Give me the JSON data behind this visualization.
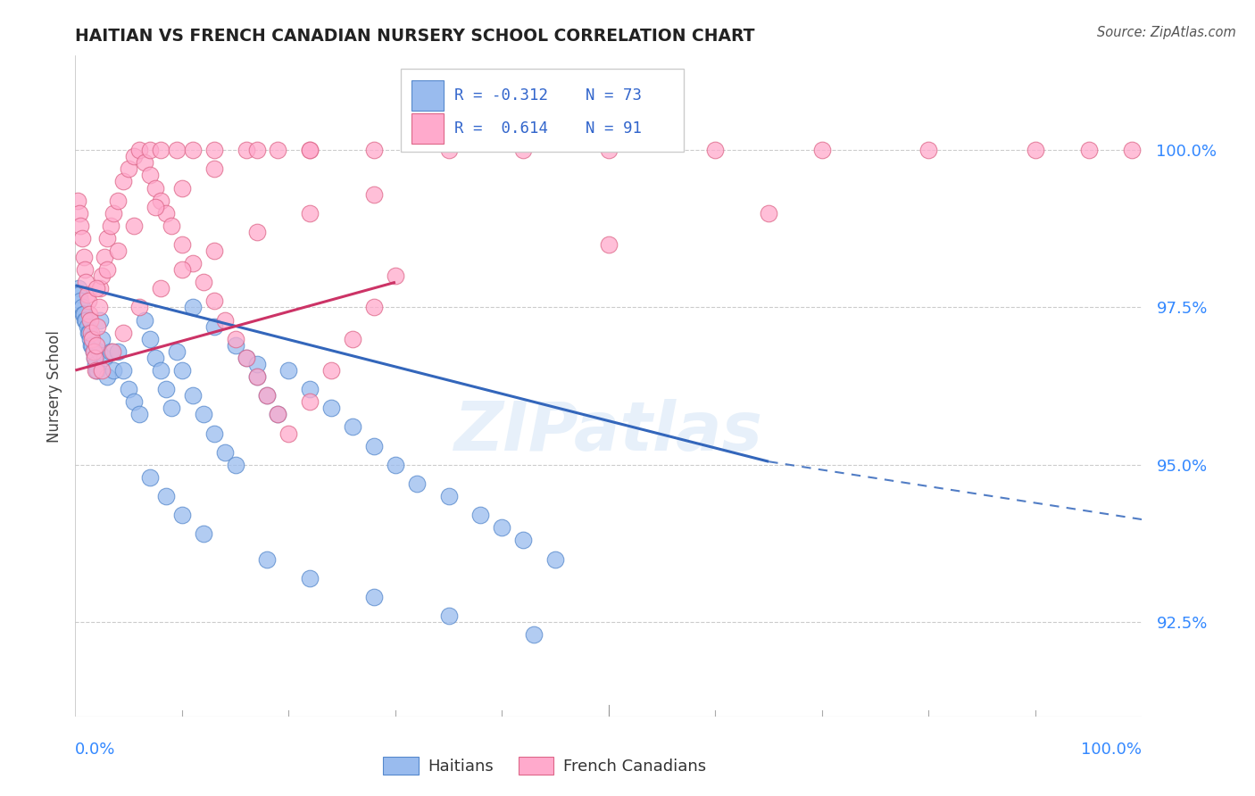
{
  "title": "HAITIAN VS FRENCH CANADIAN NURSERY SCHOOL CORRELATION CHART",
  "source": "Source: ZipAtlas.com",
  "ylabel": "Nursery School",
  "yticks": [
    92.5,
    95.0,
    97.5,
    100.0
  ],
  "ytick_labels": [
    "92.5%",
    "95.0%",
    "97.5%",
    "100.0%"
  ],
  "xlim": [
    0.0,
    100.0
  ],
  "ylim": [
    91.0,
    101.5
  ],
  "blue_R": -0.312,
  "blue_N": 73,
  "pink_R": 0.614,
  "pink_N": 91,
  "legend_label_blue": "Haitians",
  "legend_label_pink": "French Canadians",
  "blue_color": "#99BBEE",
  "pink_color": "#FFAACC",
  "blue_edge_color": "#5588CC",
  "pink_edge_color": "#DD6688",
  "blue_line_color": "#3366BB",
  "pink_line_color": "#CC3366",
  "watermark": "ZIPatlas",
  "blue_line_x0": 0.0,
  "blue_line_y0": 97.85,
  "blue_line_x1": 65.0,
  "blue_line_y1": 95.05,
  "blue_dashed_x1": 100.0,
  "blue_dashed_y1": 94.13,
  "pink_line_x0": 0.0,
  "pink_line_y0": 96.5,
  "pink_line_x1": 30.0,
  "pink_line_y1": 97.9,
  "blue_x": [
    0.3,
    0.4,
    0.5,
    0.6,
    0.7,
    0.8,
    0.9,
    1.0,
    1.1,
    1.2,
    1.3,
    1.4,
    1.5,
    1.6,
    1.7,
    1.8,
    1.9,
    2.0,
    2.1,
    2.2,
    2.3,
    2.5,
    2.7,
    3.0,
    3.3,
    3.6,
    4.0,
    4.5,
    5.0,
    5.5,
    6.0,
    6.5,
    7.0,
    7.5,
    8.0,
    8.5,
    9.0,
    9.5,
    10.0,
    11.0,
    12.0,
    13.0,
    14.0,
    15.0,
    16.0,
    17.0,
    18.0,
    19.0,
    20.0,
    22.0,
    24.0,
    26.0,
    28.0,
    30.0,
    32.0,
    35.0,
    38.0,
    40.0,
    42.0,
    45.0,
    11.0,
    13.0,
    15.0,
    17.0,
    7.0,
    8.5,
    10.0,
    12.0,
    18.0,
    22.0,
    28.0,
    35.0,
    43.0
  ],
  "blue_y": [
    97.8,
    97.7,
    97.6,
    97.5,
    97.4,
    97.4,
    97.3,
    97.3,
    97.2,
    97.1,
    97.1,
    97.0,
    96.9,
    96.9,
    96.8,
    96.7,
    96.6,
    96.5,
    96.5,
    96.8,
    97.3,
    97.0,
    96.7,
    96.4,
    96.8,
    96.5,
    96.8,
    96.5,
    96.2,
    96.0,
    95.8,
    97.3,
    97.0,
    96.7,
    96.5,
    96.2,
    95.9,
    96.8,
    96.5,
    96.1,
    95.8,
    95.5,
    95.2,
    95.0,
    96.7,
    96.4,
    96.1,
    95.8,
    96.5,
    96.2,
    95.9,
    95.6,
    95.3,
    95.0,
    94.7,
    94.5,
    94.2,
    94.0,
    93.8,
    93.5,
    97.5,
    97.2,
    96.9,
    96.6,
    94.8,
    94.5,
    94.2,
    93.9,
    93.5,
    93.2,
    92.9,
    92.6,
    92.3
  ],
  "pink_x": [
    0.2,
    0.4,
    0.5,
    0.6,
    0.8,
    0.9,
    1.0,
    1.1,
    1.2,
    1.3,
    1.4,
    1.5,
    1.6,
    1.7,
    1.8,
    1.9,
    2.0,
    2.1,
    2.2,
    2.3,
    2.5,
    2.7,
    3.0,
    3.3,
    3.6,
    4.0,
    4.5,
    5.0,
    5.5,
    6.0,
    6.5,
    7.0,
    7.5,
    8.0,
    8.5,
    9.0,
    10.0,
    11.0,
    12.0,
    13.0,
    14.0,
    15.0,
    16.0,
    17.0,
    18.0,
    19.0,
    20.0,
    22.0,
    24.0,
    26.0,
    28.0,
    30.0,
    7.0,
    8.0,
    9.5,
    11.0,
    13.0,
    16.0,
    19.0,
    22.0,
    2.5,
    3.5,
    4.5,
    6.0,
    8.0,
    10.0,
    13.0,
    17.0,
    22.0,
    28.0,
    2.0,
    3.0,
    4.0,
    5.5,
    7.5,
    10.0,
    13.0,
    17.0,
    22.0,
    28.0,
    35.0,
    42.0,
    50.0,
    60.0,
    70.0,
    80.0,
    90.0,
    95.0,
    99.0,
    50.0,
    65.0
  ],
  "pink_y": [
    99.2,
    99.0,
    98.8,
    98.6,
    98.3,
    98.1,
    97.9,
    97.7,
    97.6,
    97.4,
    97.3,
    97.1,
    97.0,
    96.8,
    96.7,
    96.5,
    96.9,
    97.2,
    97.5,
    97.8,
    98.0,
    98.3,
    98.6,
    98.8,
    99.0,
    99.2,
    99.5,
    99.7,
    99.9,
    100.0,
    99.8,
    99.6,
    99.4,
    99.2,
    99.0,
    98.8,
    98.5,
    98.2,
    97.9,
    97.6,
    97.3,
    97.0,
    96.7,
    96.4,
    96.1,
    95.8,
    95.5,
    96.0,
    96.5,
    97.0,
    97.5,
    98.0,
    100.0,
    100.0,
    100.0,
    100.0,
    100.0,
    100.0,
    100.0,
    100.0,
    96.5,
    96.8,
    97.1,
    97.5,
    97.8,
    98.1,
    98.4,
    98.7,
    99.0,
    99.3,
    97.8,
    98.1,
    98.4,
    98.8,
    99.1,
    99.4,
    99.7,
    100.0,
    100.0,
    100.0,
    100.0,
    100.0,
    100.0,
    100.0,
    100.0,
    100.0,
    100.0,
    100.0,
    100.0,
    98.5,
    99.0
  ]
}
